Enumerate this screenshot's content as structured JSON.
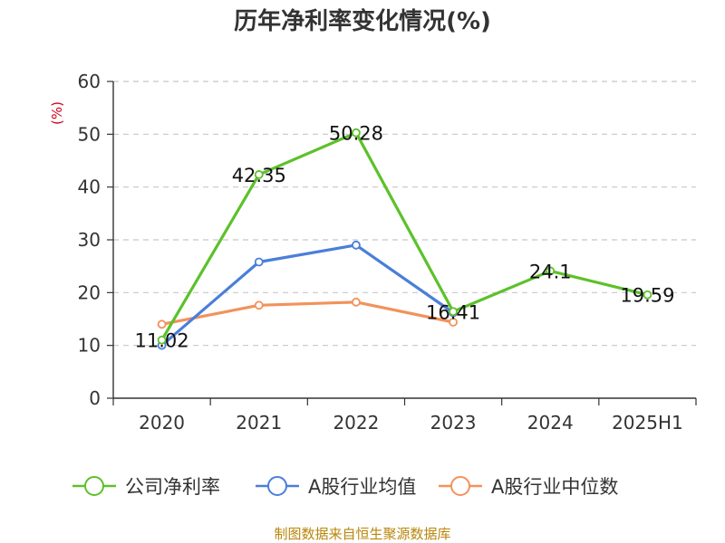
{
  "chart_data": {
    "type": "line",
    "title": "历年净利率变化情况(%)",
    "ylabel": "(%)",
    "categories": [
      "2020",
      "2021",
      "2022",
      "2023",
      "2024",
      "2025H1"
    ],
    "yticks": [
      "0",
      "10",
      "20",
      "30",
      "40",
      "50",
      "60"
    ],
    "ylim": [
      0,
      60
    ],
    "grid": true,
    "legend_position": "bottom",
    "series": [
      {
        "name": "公司净利率",
        "color": "#5cc12a",
        "values": [
          11.02,
          42.35,
          50.28,
          16.41,
          24.1,
          19.59
        ],
        "labels": [
          "11.02",
          "42.35",
          "50.28",
          "16.41",
          "24.1",
          "19.59"
        ]
      },
      {
        "name": "A股行业均值",
        "color": "#4a7fd9",
        "values": [
          10.0,
          25.8,
          29.0,
          16.2,
          null,
          null
        ]
      },
      {
        "name": "A股行业中位数",
        "color": "#f2925b",
        "values": [
          14.0,
          17.6,
          18.2,
          14.4,
          null,
          null
        ]
      }
    ]
  },
  "source": "制图数据来自恒生聚源数据库"
}
